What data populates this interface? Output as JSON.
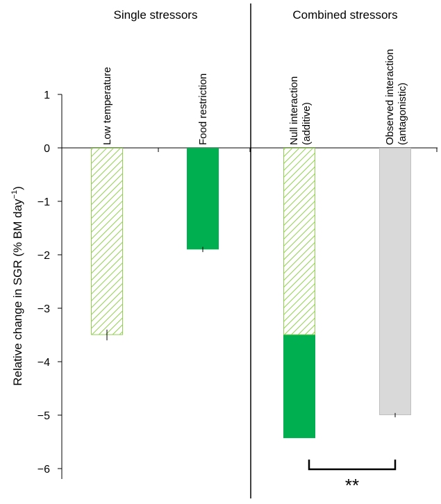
{
  "chart_data": {
    "type": "bar",
    "title": "",
    "ylabel": "Relative change in SGR (% BM day",
    "ylabel_sup": "−1",
    "ylabel_close": ")",
    "ylim": [
      -6,
      1
    ],
    "yticks": [
      1,
      0,
      -1,
      -2,
      -3,
      -4,
      -5,
      -6
    ],
    "ytick_labels": [
      "1",
      "0",
      "−1",
      "−2",
      "−3",
      "−4",
      "−5",
      "−6"
    ],
    "grid": false,
    "panels": [
      {
        "label": "Single stressors",
        "categories": [
          "Low temperature",
          "Food restriction"
        ]
      },
      {
        "label": "Combined stressors",
        "categories": [
          "Null interaction (additive)",
          "Observed interaction (antagonistic)"
        ]
      }
    ],
    "bars": [
      {
        "label_lines": [
          "Low temperature"
        ],
        "segments": [
          {
            "from": 0,
            "to": -3.5,
            "fill": "hatch-green"
          }
        ],
        "error": 0.1
      },
      {
        "label_lines": [
          "Food restriction"
        ],
        "segments": [
          {
            "from": 0,
            "to": -1.9,
            "fill": "solid-green"
          }
        ],
        "error": 0.05
      },
      {
        "label_lines": [
          "Null interaction",
          "(additive)"
        ],
        "segments": [
          {
            "from": 0,
            "to": -3.5,
            "fill": "hatch-green"
          },
          {
            "from": -3.5,
            "to": -5.43,
            "fill": "solid-green"
          }
        ],
        "error": 0
      },
      {
        "label_lines": [
          "Observed interaction",
          "(antagonistic)"
        ],
        "segments": [
          {
            "from": 0,
            "to": -5.0,
            "fill": "solid-grey"
          }
        ],
        "error": 0.04
      }
    ],
    "significance": "**",
    "colors": {
      "solid_green": "#00b050",
      "hatch_green": "#92d050",
      "grey_fill": "#d9d9d9",
      "grey_stroke": "#bfbfbf",
      "axis": "#000000"
    }
  }
}
